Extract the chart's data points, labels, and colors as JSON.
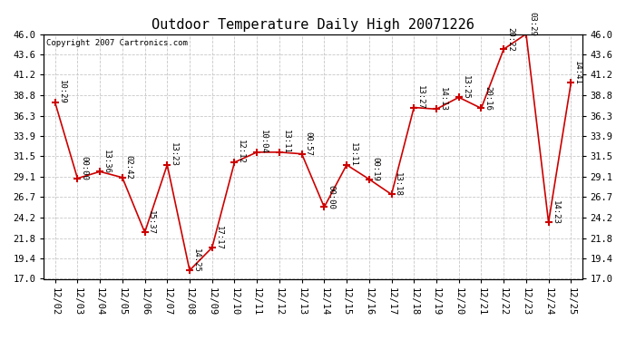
{
  "title": "Outdoor Temperature Daily High 20071226",
  "copyright": "Copyright 2007 Cartronics.com",
  "dates": [
    "12/02",
    "12/03",
    "12/04",
    "12/05",
    "12/06",
    "12/07",
    "12/08",
    "12/09",
    "12/10",
    "12/11",
    "12/12",
    "12/13",
    "12/14",
    "12/15",
    "12/16",
    "12/17",
    "12/18",
    "12/19",
    "12/20",
    "12/21",
    "12/22",
    "12/23",
    "12/24",
    "12/25"
  ],
  "values": [
    37.9,
    28.9,
    29.7,
    29.0,
    22.5,
    30.5,
    18.0,
    20.7,
    30.8,
    32.0,
    32.0,
    31.8,
    25.5,
    30.5,
    28.8,
    27.0,
    37.3,
    37.1,
    38.5,
    37.2,
    44.2,
    46.0,
    23.7,
    40.2
  ],
  "labels": [
    "10:29",
    "00:00",
    "13:36",
    "02:42",
    "15:37",
    "13:23",
    "14:25",
    "17:17",
    "12:12",
    "10:04",
    "13:11",
    "00:57",
    "00:00",
    "13:11",
    "00:19",
    "13:18",
    "13:27",
    "14:13",
    "13:25",
    "20:16",
    "20:22",
    "03:29",
    "14:23",
    "14:41"
  ],
  "ylim": [
    17.0,
    46.0
  ],
  "yticks": [
    17.0,
    19.4,
    21.8,
    24.2,
    26.7,
    29.1,
    31.5,
    33.9,
    36.3,
    38.8,
    41.2,
    43.6,
    46.0
  ],
  "line_color": "#cc0000",
  "marker_color": "#cc0000",
  "bg_color": "#ffffff",
  "grid_color": "#c8c8c8",
  "title_fontsize": 11,
  "label_fontsize": 6.5,
  "tick_fontsize": 7.5,
  "copyright_fontsize": 6.5
}
